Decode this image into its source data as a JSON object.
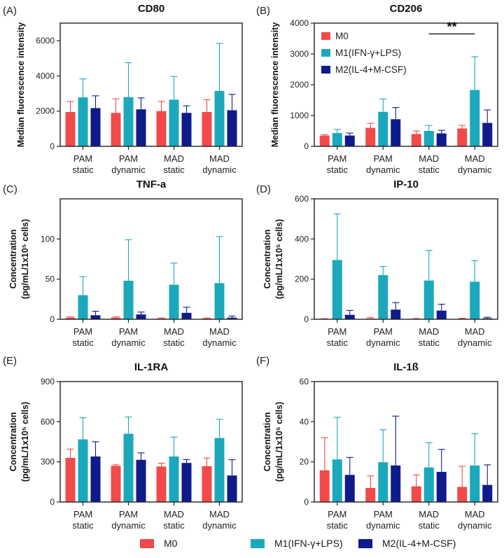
{
  "colors": {
    "M0": "#f24a4a",
    "M1": "#1ba8bd",
    "M2": "#0f1b8a"
  },
  "legend": [
    {
      "key": "M0",
      "label": "M0"
    },
    {
      "key": "M1",
      "label": "M1(IFN-γ+LPS)"
    },
    {
      "key": "M2",
      "label": "M2(IL-4+M-CSF)"
    }
  ],
  "chart_data": [
    {
      "type": "bar",
      "panel": "(A)",
      "title": "CD80",
      "ylabel": [
        "Median fluorescence intensity"
      ],
      "ylim": [
        0,
        7000
      ],
      "yticks": [
        0,
        2000,
        4000,
        6000
      ],
      "ytick_labels": [
        "0",
        "2000",
        "4000",
        "6000"
      ],
      "categories": [
        [
          "PAM",
          "static"
        ],
        [
          "PAM",
          "dynamic"
        ],
        [
          "MAD",
          "static"
        ],
        [
          "MAD",
          "dynamic"
        ]
      ],
      "series": [
        {
          "name": "M0",
          "values": [
            1950,
            1900,
            2000,
            1950
          ],
          "errors": [
            600,
            800,
            550,
            700
          ],
          "legend": false
        },
        {
          "name": "M1(IFN-γ+LPS)",
          "values": [
            2780,
            2800,
            2650,
            3150
          ],
          "errors": [
            1050,
            1950,
            1320,
            2700
          ],
          "legend": false
        },
        {
          "name": "M2(IL-4+M-CSF)",
          "values": [
            2170,
            2100,
            1900,
            2050
          ],
          "errors": [
            700,
            650,
            400,
            900
          ],
          "legend": false
        }
      ],
      "significance": null
    },
    {
      "type": "bar",
      "panel": "(B)",
      "title": "CD206",
      "ylabel": [
        "Median fluorescence intensity"
      ],
      "ylim": [
        0,
        4000
      ],
      "yticks": [
        0,
        1000,
        2000,
        3000,
        4000
      ],
      "ytick_labels": [
        "0",
        "1000",
        "2000",
        "3000",
        "4000"
      ],
      "categories": [
        [
          "PAM",
          "static"
        ],
        [
          "PAM",
          "dynamic"
        ],
        [
          "MAD",
          "static"
        ],
        [
          "MAD",
          "dynamic"
        ]
      ],
      "series": [
        {
          "name": "M0",
          "values": [
            350,
            600,
            400,
            580
          ],
          "errors": [
            30,
            150,
            100,
            100
          ],
          "legend": true
        },
        {
          "name": "M1(IFN-γ+LPS)",
          "values": [
            430,
            1120,
            500,
            1830
          ],
          "errors": [
            120,
            420,
            180,
            1080
          ],
          "legend": true
        },
        {
          "name": "M2(IL-4+M-CSF)",
          "values": [
            350,
            880,
            420,
            760
          ],
          "errors": [
            80,
            380,
            100,
            420
          ],
          "legend": true
        }
      ],
      "significance": {
        "label": "**",
        "from": 2.5,
        "to": 3.5,
        "y": 3650
      }
    },
    {
      "type": "bar",
      "panel": "(C)",
      "title": "TNF-a",
      "ylabel": [
        "Concentration",
        "(pg/mL/1x10⁵ cells)"
      ],
      "ylim": [
        0,
        150
      ],
      "yticks": [
        0,
        50,
        100
      ],
      "ytick_labels": [
        "0",
        "50",
        "100"
      ],
      "categories": [
        [
          "PAM",
          "static"
        ],
        [
          "PAM",
          "dynamic"
        ],
        [
          "MAD",
          "static"
        ],
        [
          "MAD",
          "dynamic"
        ]
      ],
      "series": [
        {
          "name": "M0",
          "values": [
            2,
            2,
            1,
            1
          ],
          "errors": [
            1,
            1,
            0.5,
            0.5
          ],
          "legend": false
        },
        {
          "name": "M1(IFN-γ+LPS)",
          "values": [
            30,
            48,
            43,
            45
          ],
          "errors": [
            23,
            51,
            27,
            58
          ],
          "legend": false
        },
        {
          "name": "M2(IL-4+M-CSF)",
          "values": [
            5,
            6,
            8,
            2
          ],
          "errors": [
            5,
            3,
            7,
            2
          ],
          "legend": false
        }
      ],
      "significance": null
    },
    {
      "type": "bar",
      "panel": "(D)",
      "title": "IP-10",
      "ylabel": [
        "Concentration",
        "(pg/mL/1x10⁵ cells)"
      ],
      "ylim": [
        0,
        600
      ],
      "yticks": [
        0,
        200,
        400,
        600
      ],
      "ytick_labels": [
        "0",
        "200",
        "400",
        "600"
      ],
      "categories": [
        [
          "PAM",
          "static"
        ],
        [
          "PAM",
          "dynamic"
        ],
        [
          "MAD",
          "static"
        ],
        [
          "MAD",
          "dynamic"
        ]
      ],
      "series": [
        {
          "name": "M0",
          "values": [
            2,
            4,
            2,
            3
          ],
          "errors": [
            1,
            5,
            2,
            2
          ],
          "legend": false
        },
        {
          "name": "M1(IFN-γ+LPS)",
          "values": [
            295,
            220,
            193,
            187
          ],
          "errors": [
            230,
            43,
            150,
            105
          ],
          "legend": false
        },
        {
          "name": "M2(IL-4+M-CSF)",
          "values": [
            22,
            48,
            43,
            5
          ],
          "errors": [
            22,
            35,
            32,
            5
          ],
          "legend": false
        }
      ],
      "significance": null
    },
    {
      "type": "bar",
      "panel": "(E)",
      "title": "IL-1RA",
      "ylabel": [
        "Concentration",
        "(pg/mL/1x10⁵ cells)"
      ],
      "ylim": [
        0,
        900
      ],
      "yticks": [
        0,
        300,
        600,
        900
      ],
      "ytick_labels": [
        "0",
        "300",
        "600",
        "900"
      ],
      "categories": [
        [
          "PAM",
          "static"
        ],
        [
          "PAM",
          "dynamic"
        ],
        [
          "MAD",
          "static"
        ],
        [
          "MAD",
          "dynamic"
        ]
      ],
      "series": [
        {
          "name": "M0",
          "values": [
            330,
            270,
            265,
            268
          ],
          "errors": [
            65,
            8,
            25,
            60
          ],
          "legend": false
        },
        {
          "name": "M1(IFN-γ+LPS)",
          "values": [
            468,
            510,
            340,
            478
          ],
          "errors": [
            162,
            125,
            145,
            140
          ],
          "legend": false
        },
        {
          "name": "M2(IL-4+M-CSF)",
          "values": [
            340,
            315,
            292,
            198
          ],
          "errors": [
            110,
            52,
            25,
            118
          ],
          "legend": false
        }
      ],
      "significance": null
    },
    {
      "type": "bar",
      "panel": "(F)",
      "title": "IL-1ß",
      "ylabel": [
        "Concentration",
        "(pg/mL/1x10⁵ cells)"
      ],
      "ylim": [
        0,
        60
      ],
      "yticks": [
        0,
        20,
        40,
        60
      ],
      "ytick_labels": [
        "0",
        "20",
        "40",
        "60"
      ],
      "categories": [
        [
          "PAM",
          "static"
        ],
        [
          "PAM",
          "dynamic"
        ],
        [
          "MAD",
          "static"
        ],
        [
          "MAD",
          "dynamic"
        ]
      ],
      "series": [
        {
          "name": "M0",
          "values": [
            15.8,
            7,
            7.8,
            7.5
          ],
          "errors": [
            16.2,
            6,
            5.7,
            10.3
          ],
          "legend": false
        },
        {
          "name": "M1(IFN-γ+LPS)",
          "values": [
            21.2,
            19.8,
            17.2,
            18.2
          ],
          "errors": [
            21,
            16.2,
            12.3,
            15.8
          ],
          "legend": false
        },
        {
          "name": "M2(IL-4+M-CSF)",
          "values": [
            13.5,
            18.2,
            15,
            8.5
          ],
          "errors": [
            8.7,
            24.6,
            11.2,
            10
          ],
          "legend": false
        }
      ],
      "significance": null
    }
  ]
}
